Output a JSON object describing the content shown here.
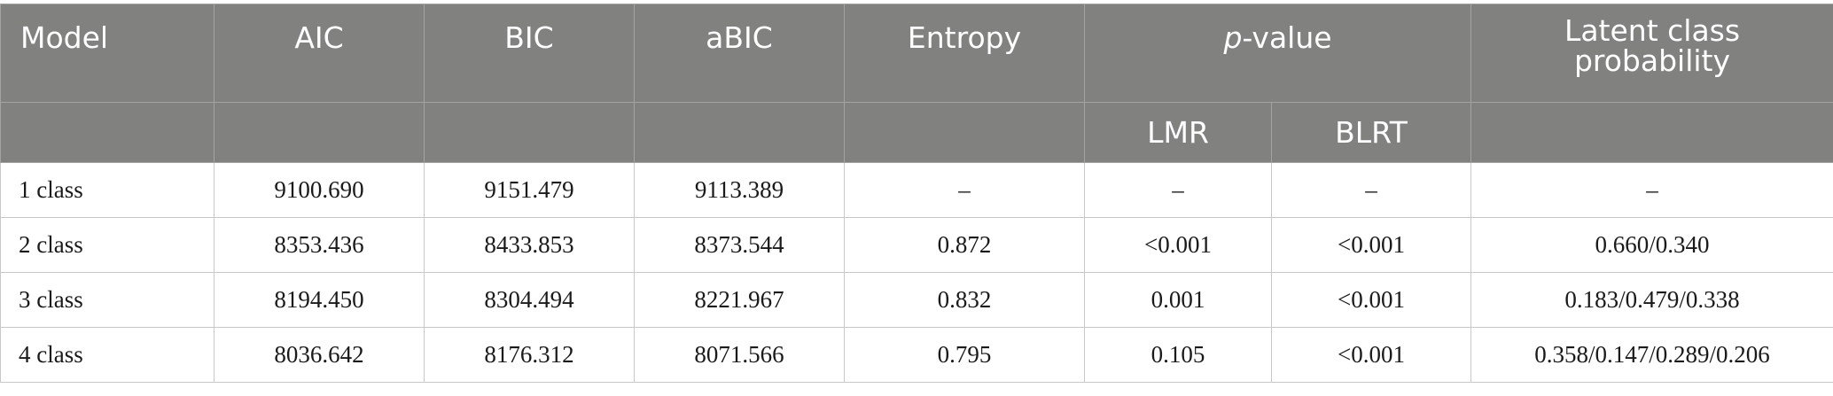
{
  "headers": {
    "model": "Model",
    "aic": "AIC",
    "bic": "BIC",
    "abic": "aBIC",
    "entropy": "Entropy",
    "pvalue_p": "p",
    "pvalue_rest": "-value",
    "latent_line1": "Latent class",
    "latent_line2": "probability",
    "lmr": "LMR",
    "blrt": "BLRT"
  },
  "rows": [
    {
      "model": "1 class",
      "aic": "9100.690",
      "bic": "9151.479",
      "abic": "9113.389",
      "entropy": "–",
      "lmr": "–",
      "blrt": "–",
      "prob": "–"
    },
    {
      "model": "2 class",
      "aic": "8353.436",
      "bic": "8433.853",
      "abic": "8373.544",
      "entropy": "0.872",
      "lmr": "<0.001",
      "blrt": "<0.001",
      "prob": "0.660/0.340"
    },
    {
      "model": "3 class",
      "aic": "8194.450",
      "bic": "8304.494",
      "abic": "8221.967",
      "entropy": "0.832",
      "lmr": "0.001",
      "blrt": "<0.001",
      "prob": "0.183/0.479/0.338"
    },
    {
      "model": "4 class",
      "aic": "8036.642",
      "bic": "8176.312",
      "abic": "8071.566",
      "entropy": "0.795",
      "lmr": "0.105",
      "blrt": "<0.001",
      "prob": "0.358/0.147/0.289/0.206"
    }
  ]
}
